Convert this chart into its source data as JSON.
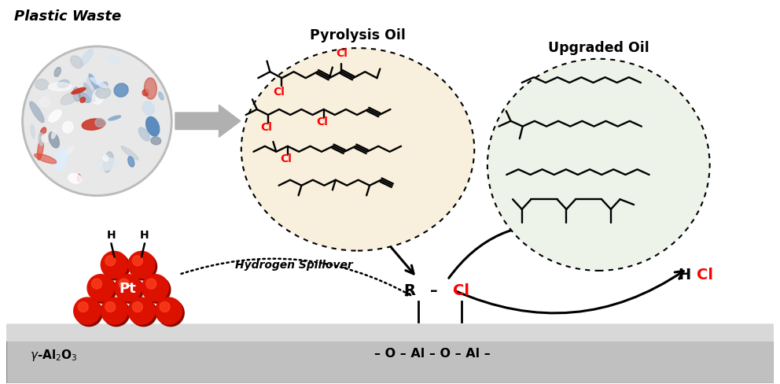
{
  "bg_color": "#ffffff",
  "plastic_waste_label": "Plastic Waste",
  "pyrolysis_oil_label": "Pyrolysis Oil",
  "upgraded_oil_label": "Upgraded Oil",
  "pt_label": "Pt",
  "gamma_alumina_label": "γ-Al₂O₃",
  "hydrogen_spillover_label": "Hydrogen Spillover",
  "hcl_label": "HCl",
  "o_al_chain_label": "– O – Al – O – Al –",
  "cl_color": "#ff0000",
  "black_color": "#000000",
  "pyrolysis_bg": "#f8f0dc",
  "upgraded_bg": "#edf3e8",
  "alumina_bg": "#c0c0c0",
  "alumina_top": "#d8d8d8",
  "pt_red": "#dd1100",
  "pt_highlight": "#ff4422",
  "pt_shadow": "#880800",
  "figsize": [
    9.92,
    4.89
  ],
  "dpi": 100
}
